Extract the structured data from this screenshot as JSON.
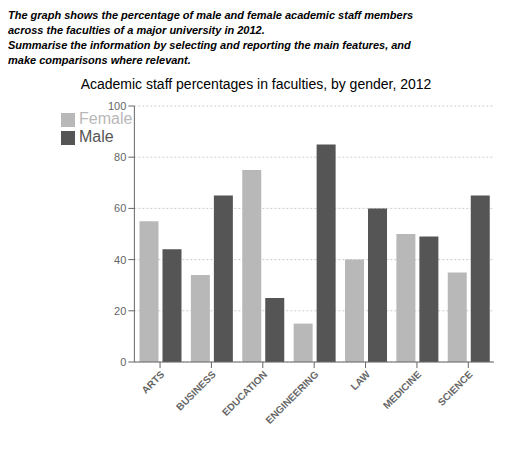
{
  "chart_data": {
    "type": "bar",
    "title": "Academic staff percentages in faculties, by gender, 2012",
    "annotations": [
      "The graph shows the percentage of male and female academic staff members",
      "across the faculties of a major university in 2012.",
      "Summarise the information by selecting and reporting the main features, and",
      "make comparisons where relevant."
    ],
    "categories": [
      "ARTS",
      "BUSINESS",
      "EDUCATION",
      "ENGINEERING",
      "LAW",
      "MEDICINE",
      "SCIENCE"
    ],
    "series": [
      {
        "name": "Female",
        "color": "#b8b8b8",
        "values": [
          55,
          34,
          75,
          15,
          40,
          50,
          35
        ]
      },
      {
        "name": "Male",
        "color": "#555555",
        "values": [
          44,
          65,
          25,
          85,
          60,
          49,
          65
        ]
      }
    ],
    "ylim": [
      0,
      100
    ],
    "yticks": [
      0,
      20,
      40,
      60,
      80,
      100
    ],
    "grid": true,
    "legend": "upper left"
  }
}
